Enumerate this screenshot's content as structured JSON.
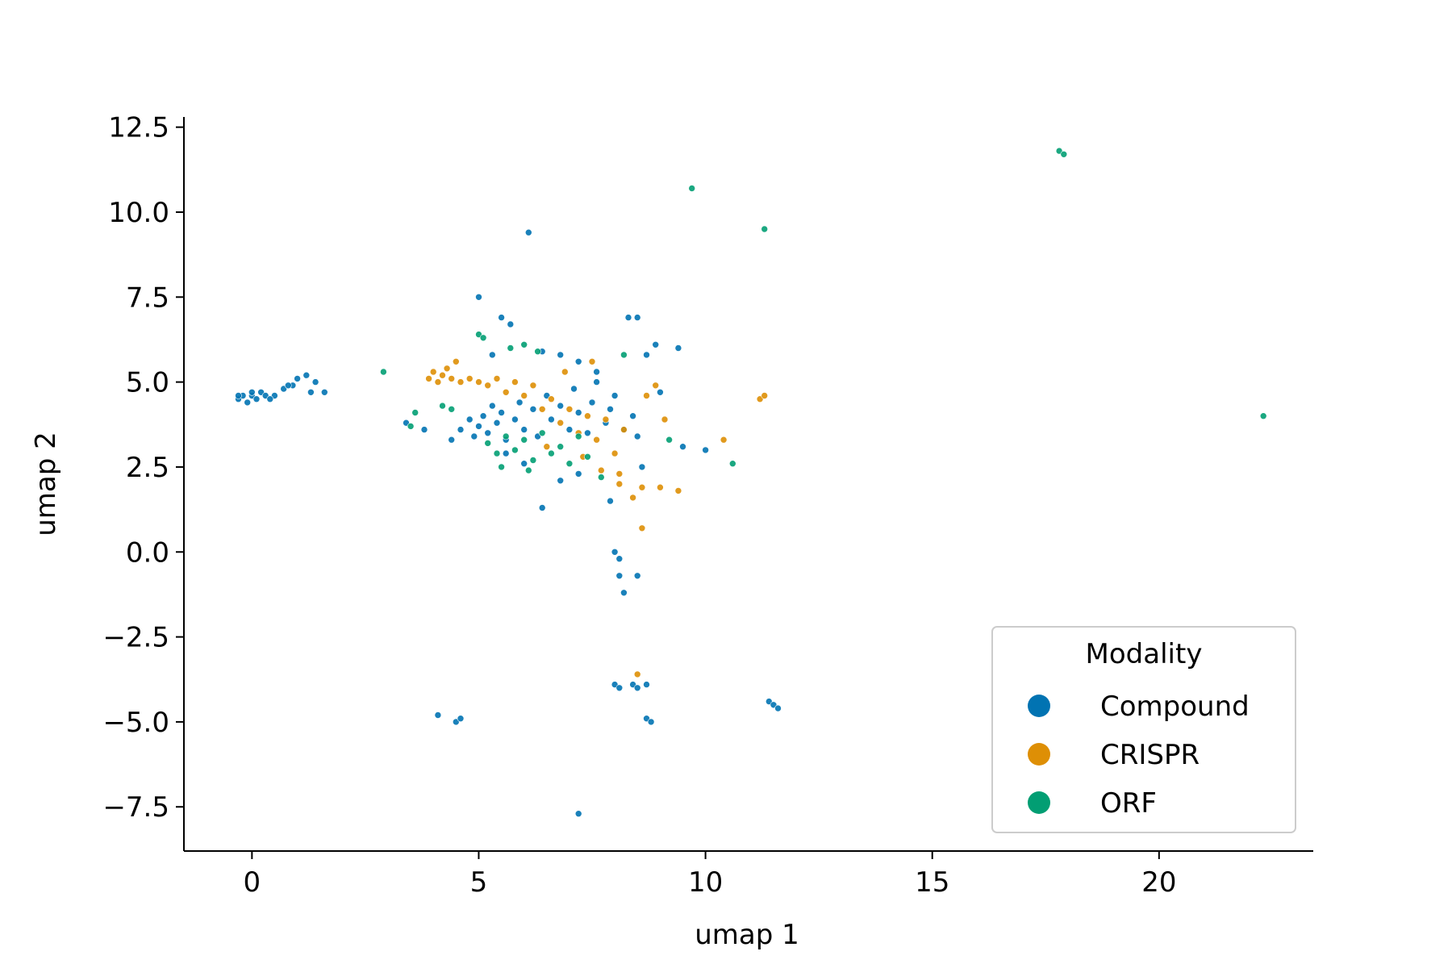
{
  "chart_data": {
    "type": "scatter",
    "xlabel": "umap 1",
    "ylabel": "umap 2",
    "xlim": [
      -1.5,
      23.4
    ],
    "ylim": [
      -8.8,
      12.8
    ],
    "xticks": [
      0,
      5,
      10,
      15,
      20
    ],
    "xtick_labels": [
      "0",
      "5",
      "10",
      "15",
      "20"
    ],
    "yticks": [
      -7.5,
      -5.0,
      -2.5,
      0.0,
      2.5,
      5.0,
      7.5,
      10.0,
      12.5
    ],
    "ytick_labels": [
      "−7.5",
      "−5.0",
      "−2.5",
      "0.0",
      "2.5",
      "5.0",
      "7.5",
      "10.0",
      "12.5"
    ],
    "grid": false,
    "legend": {
      "title": "Modality",
      "position": "lower-right"
    },
    "series": [
      {
        "name": "Compound",
        "color": "#0173b2",
        "points": [
          [
            -0.3,
            4.5
          ],
          [
            -0.2,
            4.6
          ],
          [
            -0.1,
            4.4
          ],
          [
            0.0,
            4.6
          ],
          [
            0.1,
            4.5
          ],
          [
            0.2,
            4.7
          ],
          [
            0.3,
            4.6
          ],
          [
            0.5,
            4.6
          ],
          [
            0.7,
            4.8
          ],
          [
            0.9,
            4.9
          ],
          [
            1.0,
            5.1
          ],
          [
            1.2,
            5.2
          ],
          [
            1.4,
            5.0
          ],
          [
            1.6,
            4.7
          ],
          [
            -0.3,
            4.6
          ],
          [
            0.0,
            4.7
          ],
          [
            0.4,
            4.5
          ],
          [
            0.8,
            4.9
          ],
          [
            1.3,
            4.7
          ],
          [
            3.4,
            3.8
          ],
          [
            3.8,
            3.6
          ],
          [
            4.4,
            3.3
          ],
          [
            4.6,
            3.6
          ],
          [
            4.8,
            3.9
          ],
          [
            4.9,
            3.4
          ],
          [
            5.0,
            3.7
          ],
          [
            5.1,
            4.0
          ],
          [
            5.2,
            3.5
          ],
          [
            5.3,
            4.3
          ],
          [
            5.4,
            3.8
          ],
          [
            5.5,
            4.1
          ],
          [
            5.6,
            3.3
          ],
          [
            5.8,
            3.9
          ],
          [
            5.9,
            4.4
          ],
          [
            6.0,
            3.6
          ],
          [
            6.2,
            4.2
          ],
          [
            6.3,
            3.4
          ],
          [
            6.5,
            4.6
          ],
          [
            6.6,
            3.9
          ],
          [
            6.8,
            4.3
          ],
          [
            7.0,
            3.6
          ],
          [
            7.1,
            4.8
          ],
          [
            7.2,
            4.1
          ],
          [
            7.4,
            3.5
          ],
          [
            7.5,
            4.4
          ],
          [
            7.6,
            5.0
          ],
          [
            7.8,
            3.8
          ],
          [
            7.9,
            4.2
          ],
          [
            8.0,
            4.6
          ],
          [
            8.2,
            3.6
          ],
          [
            8.4,
            4.0
          ],
          [
            8.5,
            3.4
          ],
          [
            5.0,
            7.5
          ],
          [
            5.5,
            6.9
          ],
          [
            5.7,
            6.7
          ],
          [
            5.3,
            5.8
          ],
          [
            6.1,
            9.4
          ],
          [
            6.4,
            5.9
          ],
          [
            6.8,
            5.8
          ],
          [
            7.2,
            5.6
          ],
          [
            7.6,
            5.3
          ],
          [
            8.3,
            6.9
          ],
          [
            8.5,
            6.9
          ],
          [
            8.9,
            6.1
          ],
          [
            9.4,
            6.0
          ],
          [
            8.7,
            5.8
          ],
          [
            9.0,
            4.7
          ],
          [
            9.5,
            3.1
          ],
          [
            10.0,
            3.0
          ],
          [
            8.6,
            2.5
          ],
          [
            7.9,
            1.5
          ],
          [
            8.0,
            0.0
          ],
          [
            8.1,
            -0.2
          ],
          [
            8.5,
            -0.7
          ],
          [
            8.1,
            -0.7
          ],
          [
            8.2,
            -1.2
          ],
          [
            8.0,
            -3.9
          ],
          [
            8.1,
            -4.0
          ],
          [
            8.4,
            -3.9
          ],
          [
            8.5,
            -4.0
          ],
          [
            8.7,
            -3.9
          ],
          [
            8.7,
            -4.9
          ],
          [
            8.8,
            -5.0
          ],
          [
            11.4,
            -4.4
          ],
          [
            11.5,
            -4.5
          ],
          [
            11.6,
            -4.6
          ],
          [
            4.1,
            -4.8
          ],
          [
            4.5,
            -5.0
          ],
          [
            4.6,
            -4.9
          ],
          [
            7.2,
            -7.7
          ],
          [
            6.4,
            1.3
          ],
          [
            6.8,
            2.1
          ],
          [
            7.2,
            2.3
          ],
          [
            6.0,
            2.6
          ],
          [
            5.6,
            2.9
          ]
        ]
      },
      {
        "name": "CRISPR",
        "color": "#de8f05",
        "points": [
          [
            3.9,
            5.1
          ],
          [
            4.0,
            5.3
          ],
          [
            4.1,
            5.0
          ],
          [
            4.2,
            5.2
          ],
          [
            4.3,
            5.4
          ],
          [
            4.4,
            5.1
          ],
          [
            4.5,
            5.6
          ],
          [
            4.6,
            5.0
          ],
          [
            4.8,
            5.1
          ],
          [
            5.0,
            5.0
          ],
          [
            5.2,
            4.9
          ],
          [
            5.4,
            5.1
          ],
          [
            5.6,
            4.7
          ],
          [
            5.8,
            5.0
          ],
          [
            6.0,
            4.6
          ],
          [
            6.2,
            4.9
          ],
          [
            6.4,
            4.2
          ],
          [
            6.6,
            4.5
          ],
          [
            6.8,
            3.8
          ],
          [
            7.0,
            4.2
          ],
          [
            7.2,
            3.5
          ],
          [
            7.4,
            4.0
          ],
          [
            7.6,
            3.3
          ],
          [
            7.8,
            3.9
          ],
          [
            8.0,
            2.9
          ],
          [
            8.2,
            3.6
          ],
          [
            6.5,
            3.1
          ],
          [
            7.3,
            2.8
          ],
          [
            7.7,
            2.4
          ],
          [
            8.1,
            2.0
          ],
          [
            8.4,
            1.6
          ],
          [
            8.6,
            1.9
          ],
          [
            8.7,
            4.6
          ],
          [
            8.9,
            4.9
          ],
          [
            9.1,
            3.9
          ],
          [
            9.0,
            1.9
          ],
          [
            9.4,
            1.8
          ],
          [
            10.4,
            3.3
          ],
          [
            11.2,
            4.5
          ],
          [
            11.3,
            4.6
          ],
          [
            8.6,
            0.7
          ],
          [
            8.5,
            -3.6
          ],
          [
            8.1,
            2.3
          ],
          [
            7.5,
            5.6
          ],
          [
            6.9,
            5.3
          ]
        ]
      },
      {
        "name": "ORF",
        "color": "#029e73",
        "points": [
          [
            2.9,
            5.3
          ],
          [
            3.5,
            3.7
          ],
          [
            3.6,
            4.1
          ],
          [
            4.2,
            4.3
          ],
          [
            4.4,
            4.2
          ],
          [
            5.0,
            6.4
          ],
          [
            5.1,
            6.3
          ],
          [
            5.7,
            6.0
          ],
          [
            6.0,
            6.1
          ],
          [
            6.3,
            5.9
          ],
          [
            5.2,
            3.2
          ],
          [
            5.4,
            2.9
          ],
          [
            5.6,
            3.4
          ],
          [
            5.8,
            3.0
          ],
          [
            6.0,
            3.3
          ],
          [
            6.2,
            2.7
          ],
          [
            6.4,
            3.5
          ],
          [
            6.6,
            2.9
          ],
          [
            6.8,
            3.1
          ],
          [
            7.0,
            2.6
          ],
          [
            7.2,
            3.4
          ],
          [
            7.4,
            2.8
          ],
          [
            5.5,
            2.5
          ],
          [
            6.1,
            2.4
          ],
          [
            7.7,
            2.2
          ],
          [
            9.2,
            3.3
          ],
          [
            10.6,
            2.6
          ],
          [
            8.2,
            5.8
          ],
          [
            9.7,
            10.7
          ],
          [
            11.3,
            9.5
          ],
          [
            17.8,
            11.8
          ],
          [
            17.9,
            11.7
          ],
          [
            22.3,
            4.0
          ]
        ]
      }
    ]
  }
}
